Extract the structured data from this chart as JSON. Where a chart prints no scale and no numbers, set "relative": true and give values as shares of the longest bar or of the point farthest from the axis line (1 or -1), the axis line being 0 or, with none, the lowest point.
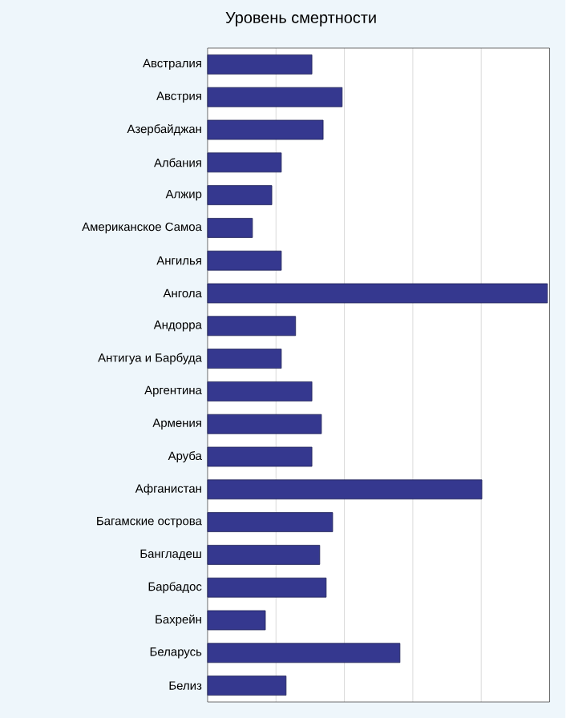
{
  "chart_data": {
    "type": "bar",
    "orientation": "horizontal",
    "relative": true,
    "title": "Уровень смертности",
    "categories": [
      "Австралия",
      "Австрия",
      "Азербайджан",
      "Албания",
      "Алжир",
      "Американское Самоа",
      "Ангилья",
      "Ангола",
      "Андорра",
      "Антигуа и Барбуда",
      "Аргентина",
      "Армения",
      "Аруба",
      "Афганистан",
      "Багамские острова",
      "Бангладеш",
      "Барбадос",
      "Бахрейн",
      "Беларусь",
      "Белиз"
    ],
    "values": [
      0.307,
      0.396,
      0.34,
      0.217,
      0.189,
      0.132,
      0.217,
      1,
      0.259,
      0.217,
      0.307,
      0.335,
      0.307,
      0.807,
      0.368,
      0.33,
      0.349,
      0.17,
      0.566,
      0.231
    ],
    "color": "#35388f",
    "grid": "x"
  }
}
